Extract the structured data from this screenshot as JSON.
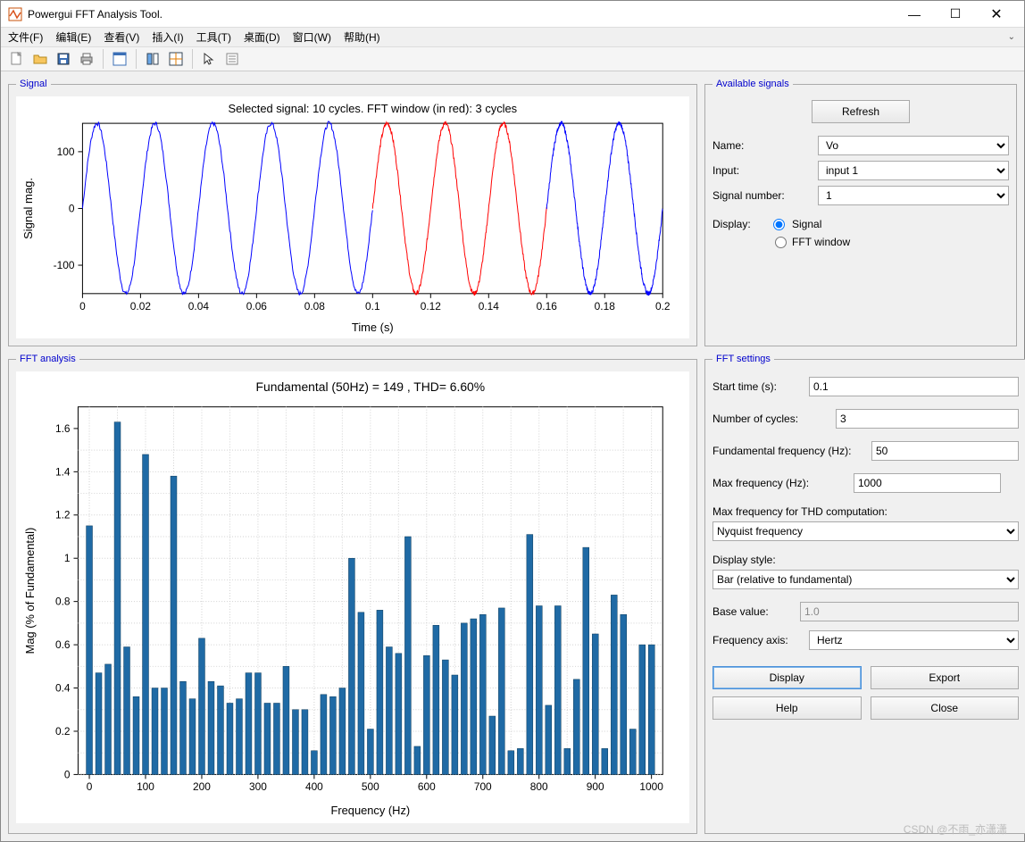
{
  "window": {
    "title": "Powergui FFT Analysis Tool."
  },
  "menu": {
    "items": [
      "文件(F)",
      "编辑(E)",
      "查看(V)",
      "插入(I)",
      "工具(T)",
      "桌面(D)",
      "窗口(W)",
      "帮助(H)"
    ]
  },
  "signal_chart": {
    "title": "Selected signal: 10 cycles. FFT window (in red): 3 cycles",
    "xlabel": "Time (s)",
    "ylabel": "Signal mag.",
    "xlim": [
      0,
      0.2
    ],
    "ylim": [
      -150,
      150
    ],
    "xticks": [
      0,
      0.02,
      0.04,
      0.06,
      0.08,
      0.1,
      0.12,
      0.14,
      0.16,
      0.18,
      0.2
    ],
    "yticks": [
      -100,
      0,
      100
    ],
    "amplitude": 150,
    "freq_hz": 50,
    "noise_amp": 8,
    "blue_range": [
      0,
      0.1
    ],
    "red_range": [
      0.1,
      0.16
    ],
    "blue2_range": [
      0.16,
      0.2
    ],
    "colors": {
      "blue": "#0000ff",
      "red": "#ff0000",
      "axis": "#000000",
      "bg": "#ffffff"
    }
  },
  "fft_chart": {
    "title": "Fundamental (50Hz) = 149 , THD= 6.60%",
    "xlabel": "Frequency (Hz)",
    "ylabel": "Mag (% of Fundamental)",
    "xlim": [
      -20,
      1020
    ],
    "ylim": [
      0,
      1.7
    ],
    "xticks": [
      0,
      100,
      200,
      300,
      400,
      500,
      600,
      700,
      800,
      900,
      1000
    ],
    "yticks": [
      0,
      0.2,
      0.4,
      0.6,
      0.8,
      1.0,
      1.2,
      1.4,
      1.6
    ],
    "bar_step_hz": 16.67,
    "bar_values": [
      1.15,
      0.47,
      0.51,
      1.63,
      0.59,
      0.36,
      1.48,
      0.4,
      0.4,
      1.38,
      0.43,
      0.35,
      0.63,
      0.43,
      0.41,
      0.33,
      0.35,
      0.47,
      0.47,
      0.33,
      0.33,
      0.5,
      0.3,
      0.3,
      0.11,
      0.37,
      0.36,
      0.4,
      1.0,
      0.75,
      0.21,
      0.76,
      0.59,
      0.56,
      1.1,
      0.13,
      0.55,
      0.69,
      0.53,
      0.46,
      0.7,
      0.72,
      0.74,
      0.27,
      0.77,
      0.11,
      0.12,
      1.11,
      0.78,
      0.32,
      0.78,
      0.12,
      0.44,
      1.05,
      0.65,
      0.12,
      0.83,
      0.74,
      0.21,
      0.6,
      0.6
    ],
    "bar_color": "#1f6aa5",
    "grid_color": "#d0d0d0",
    "axis_color": "#000000",
    "bg": "#ffffff"
  },
  "available": {
    "legend": "Available signals",
    "refresh": "Refresh",
    "name_label": "Name:",
    "name_value": "Vo",
    "input_label": "Input:",
    "input_value": "input 1",
    "signum_label": "Signal number:",
    "signum_value": "1",
    "display_label": "Display:",
    "radio_signal": "Signal",
    "radio_fft": "FFT window"
  },
  "settings": {
    "legend": "FFT settings",
    "start_label": "Start time (s):",
    "start_value": "0.1",
    "cycles_label": "Number of cycles:",
    "cycles_value": "3",
    "fund_label": "Fundamental frequency (Hz):",
    "fund_value": "50",
    "maxf_label": "Max frequency (Hz):",
    "maxf_value": "1000",
    "thd_label": "Max frequency for THD computation:",
    "thd_value": "Nyquist frequency",
    "style_label": "Display style:",
    "style_value": "Bar (relative to fundamental)",
    "base_label": "Base value:",
    "base_value": "1.0",
    "axis_label": "Frequency axis:",
    "axis_value": "Hertz",
    "btn_display": "Display",
    "btn_export": "Export",
    "btn_help": "Help",
    "btn_close": "Close"
  },
  "legends": {
    "signal": "Signal",
    "fft": "FFT analysis"
  },
  "watermark": "CSDN @不雨_亦潇潇"
}
